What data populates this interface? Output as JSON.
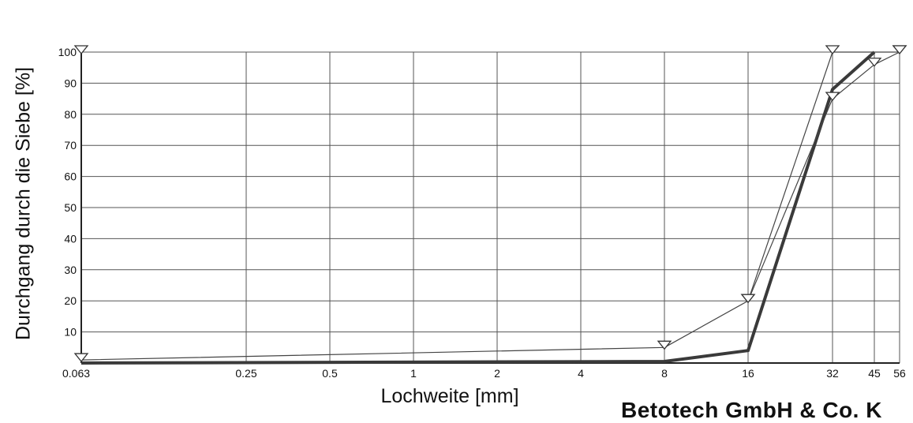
{
  "chart_data": {
    "type": "line",
    "ylabel": "Durchgang durch die Siebe [%]",
    "xlabel": "Lochweite [mm]",
    "x_categories": [
      "0.063",
      "0.25",
      "0.5",
      "1",
      "2",
      "4",
      "8",
      "16",
      "32",
      "45",
      "56"
    ],
    "x_scale": "log",
    "ylim": [
      0,
      100
    ],
    "y_ticks": [
      "10",
      "20",
      "30",
      "40",
      "50",
      "60",
      "70",
      "80",
      "90",
      "100"
    ],
    "grid": true,
    "series": [
      {
        "style": "thick line",
        "color": "#3a3a3a",
        "points": [
          {
            "x": 0.063,
            "y": 0
          },
          {
            "x": 8,
            "y": 0.5
          },
          {
            "x": 16,
            "y": 4
          },
          {
            "x": 32,
            "y": 88
          },
          {
            "x": 45,
            "y": 100
          }
        ]
      },
      {
        "style": "thin line with triangle markers",
        "color": "#444444",
        "points": [
          {
            "x": 0.063,
            "y": 1
          },
          {
            "x": 8,
            "y": 5
          },
          {
            "x": 16,
            "y": 20
          },
          {
            "x": 32,
            "y": 100
          },
          {
            "x": 56,
            "y": 100
          }
        ]
      },
      {
        "style": "thin line with triangle markers",
        "color": "#444444",
        "points": [
          {
            "x": 16,
            "y": 20
          },
          {
            "x": 32,
            "y": 85
          },
          {
            "x": 45,
            "y": 96
          },
          {
            "x": 56,
            "y": 100
          }
        ]
      }
    ],
    "extra_markers": [
      {
        "x": 0.063,
        "y": 100
      }
    ]
  },
  "footer": {
    "company": "Betotech GmbH & Co. K"
  }
}
